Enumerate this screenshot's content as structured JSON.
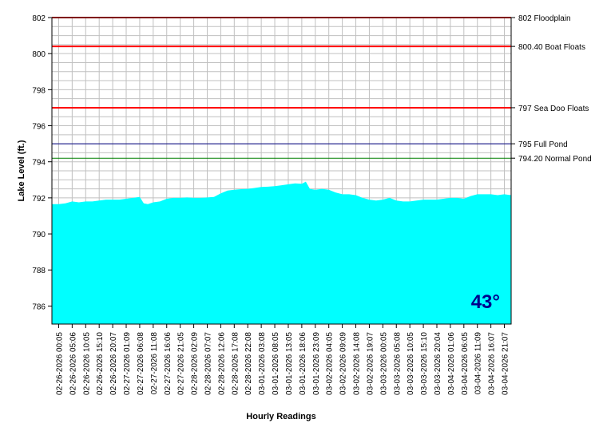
{
  "chart_data": {
    "type": "area",
    "title": "",
    "xlabel": "Hourly Readings",
    "ylabel": "Lake Level (ft.)",
    "ylim": [
      785,
      802
    ],
    "y_ticks": [
      786,
      788,
      790,
      792,
      794,
      796,
      798,
      800,
      802
    ],
    "grid": true,
    "x_tick_labels": [
      "02-26-2026 00:05",
      "02-26-2026 05:06",
      "02-26-2026 10:05",
      "02-26-2026 15:10",
      "02-26-2026 20:07",
      "02-27-2026 01:09",
      "02-27-2026 06:08",
      "02-27-2026 11:08",
      "02-27-2026 16:06",
      "02-27-2026 21:05",
      "02-28-2026 02:09",
      "02-28-2026 07:07",
      "02-28-2026 12:06",
      "02-28-2026 17:08",
      "02-28-2026 22:08",
      "03-01-2026 03:08",
      "03-01-2026 08:05",
      "03-01-2026 13:05",
      "03-01-2026 18:06",
      "03-01-2026 23:09",
      "03-02-2026 04:05",
      "03-02-2026 09:09",
      "03-02-2026 14:08",
      "03-02-2026 19:07",
      "03-03-2026 00:05",
      "03-03-2026 05:08",
      "03-03-2026 10:05",
      "03-03-2026 15:10",
      "03-03-2026 20:04",
      "03-04-2026 01:06",
      "03-04-2026 06:05",
      "03-04-2026 11:09",
      "03-04-2026 16:07",
      "03-04-2026 21:07"
    ],
    "series": [
      {
        "color": "#00ffff",
        "x_index": [
          0,
          0.5,
          1,
          1.5,
          2,
          2.5,
          3,
          3.5,
          4,
          4.5,
          5,
          5.5,
          6,
          6.3,
          6.6,
          7,
          7.5,
          8,
          8.5,
          9,
          9.5,
          10,
          10.5,
          11,
          11.5,
          12,
          12.5,
          13,
          13.5,
          14,
          14.5,
          15,
          15.5,
          16,
          16.5,
          17,
          17.5,
          18,
          18.3,
          18.6,
          19,
          19.5,
          20,
          20.5,
          21,
          21.5,
          22,
          22.5,
          23,
          23.5,
          24,
          24.5,
          25,
          25.5,
          26,
          26.5,
          27,
          27.5,
          28,
          28.5,
          29,
          29.5,
          30,
          30.5,
          31,
          31.5,
          32,
          32.5,
          33,
          33.5
        ],
        "values": [
          791.65,
          791.7,
          791.8,
          791.75,
          791.8,
          791.8,
          791.85,
          791.9,
          791.9,
          791.9,
          791.95,
          792.0,
          792.05,
          791.7,
          791.65,
          791.75,
          791.8,
          791.95,
          792.0,
          792.0,
          792.02,
          792.0,
          792.0,
          792.02,
          792.05,
          792.25,
          792.4,
          792.45,
          792.48,
          792.5,
          792.55,
          792.6,
          792.62,
          792.65,
          792.7,
          792.75,
          792.8,
          792.78,
          792.9,
          792.5,
          792.45,
          792.5,
          792.45,
          792.3,
          792.2,
          792.2,
          792.15,
          792.0,
          791.9,
          791.85,
          791.9,
          792.0,
          791.85,
          791.8,
          791.8,
          791.85,
          791.9,
          791.9,
          791.9,
          791.95,
          792.0,
          792.0,
          791.95,
          792.1,
          792.2,
          792.2,
          792.2,
          792.15,
          792.2,
          792.15
        ]
      }
    ],
    "reference_lines": [
      {
        "value": 802,
        "label": "802 Floodplain",
        "color": "#ff0000"
      },
      {
        "value": 800.4,
        "label": "800.40 Boat Floats",
        "color": "#ff0000"
      },
      {
        "value": 797,
        "label": "797 Sea Doo Floats",
        "color": "#ff0000"
      },
      {
        "value": 795,
        "label": "795 Full Pond",
        "color": "#000080"
      },
      {
        "value": 794.2,
        "label": "794.20 Normal Pond",
        "color": "#008000"
      }
    ],
    "annotation": "43°"
  }
}
